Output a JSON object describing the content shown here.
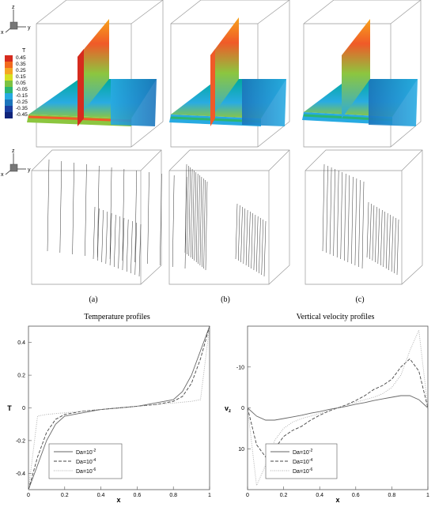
{
  "panel_labels": [
    "(a)",
    "(b)",
    "(c)"
  ],
  "colorbar": {
    "title": "T",
    "levels": [
      "0.45",
      "0.35",
      "0.25",
      "0.15",
      "0.05",
      "-0.05",
      "-0.15",
      "-0.25",
      "-0.35",
      "-0.45"
    ],
    "colors": [
      "#d62b1e",
      "#f26a1e",
      "#f5a623",
      "#d9e021",
      "#7cc242",
      "#2bb673",
      "#27aae1",
      "#1c75bc",
      "#1b3fa0",
      "#10247a"
    ]
  },
  "axes_triad": {
    "top": [
      "z",
      "x",
      "y"
    ],
    "bottom": [
      "z",
      "x",
      "y"
    ]
  },
  "chart_data": [
    {
      "type": "line",
      "title": "Temperature profiles",
      "xlabel": "x",
      "ylabel": "T",
      "xlim": [
        0,
        1
      ],
      "ylim": [
        0.5,
        -0.5
      ],
      "y_inverted": true,
      "xticks": [
        "0",
        "0.2",
        "0.4",
        "0.6",
        "0.8",
        "1"
      ],
      "yticks": [
        "-0.4",
        "-0.2",
        "0",
        "0.2",
        "0.4"
      ],
      "x": [
        0,
        0.05,
        0.1,
        0.15,
        0.2,
        0.25,
        0.3,
        0.35,
        0.4,
        0.45,
        0.5,
        0.55,
        0.6,
        0.65,
        0.7,
        0.75,
        0.8,
        0.85,
        0.9,
        0.95,
        1.0
      ],
      "legend_location": "bottom-left",
      "series": [
        {
          "name": "Da=10",
          "exp": "-2",
          "style": "solid",
          "values": [
            -0.5,
            -0.35,
            -0.2,
            -0.1,
            -0.05,
            -0.04,
            -0.03,
            -0.02,
            -0.01,
            -0.005,
            0,
            0.005,
            0.01,
            0.02,
            0.03,
            0.04,
            0.05,
            0.1,
            0.2,
            0.35,
            0.5
          ]
        },
        {
          "name": "Da=10",
          "exp": "-4",
          "style": "dashed",
          "values": [
            -0.5,
            -0.3,
            -0.15,
            -0.07,
            -0.04,
            -0.03,
            -0.02,
            -0.015,
            -0.01,
            -0.005,
            0,
            0.005,
            0.01,
            0.015,
            0.02,
            0.03,
            0.04,
            0.07,
            0.15,
            0.3,
            0.5
          ]
        },
        {
          "name": "Da=10",
          "exp": "-6",
          "style": "dotted",
          "values": [
            -0.5,
            -0.05,
            -0.04,
            -0.035,
            -0.03,
            -0.025,
            -0.02,
            -0.015,
            -0.01,
            -0.005,
            0,
            0.005,
            0.01,
            0.015,
            0.02,
            0.025,
            0.03,
            0.035,
            0.04,
            0.05,
            0.5
          ]
        }
      ]
    },
    {
      "type": "line",
      "title": "Vertical velocity profiles",
      "xlabel": "x",
      "ylabel": "v",
      "ylabel_sub": "z",
      "xlim": [
        0,
        1
      ],
      "ylim": [
        -20,
        20
      ],
      "xticks": [
        "0",
        "0.2",
        "0.4",
        "0.6",
        "0.8",
        "1"
      ],
      "yticks": [
        "10",
        "0",
        "-10"
      ],
      "ytick_values": [
        10,
        0,
        -10
      ],
      "x": [
        0,
        0.05,
        0.1,
        0.15,
        0.2,
        0.25,
        0.3,
        0.35,
        0.4,
        0.45,
        0.5,
        0.55,
        0.6,
        0.65,
        0.7,
        0.75,
        0.8,
        0.85,
        0.9,
        0.95,
        1.0
      ],
      "legend_location": "bottom-right",
      "series": [
        {
          "name": "Da=10",
          "exp": "-2",
          "style": "solid",
          "values": [
            0,
            2,
            3,
            3,
            2.6,
            2.2,
            1.8,
            1.3,
            0.9,
            0.4,
            0,
            -0.4,
            -0.9,
            -1.3,
            -1.8,
            -2.2,
            -2.6,
            -3,
            -3,
            -2,
            0
          ]
        },
        {
          "name": "Da=10",
          "exp": "-4",
          "style": "dashed",
          "values": [
            0,
            9,
            12,
            10,
            7,
            5.5,
            4.5,
            3,
            1.8,
            0.8,
            0,
            -0.8,
            -1.8,
            -3,
            -4.5,
            -5.5,
            -7,
            -10,
            -12,
            -9,
            0
          ]
        },
        {
          "name": "Da=10",
          "exp": "-6",
          "style": "dotted",
          "values": [
            0,
            19,
            14,
            8,
            5,
            3.5,
            2.6,
            2,
            1.4,
            0.7,
            0,
            -0.7,
            -1.4,
            -2,
            -2.6,
            -3.5,
            -5,
            -8,
            -14,
            -19,
            0
          ]
        }
      ]
    }
  ]
}
